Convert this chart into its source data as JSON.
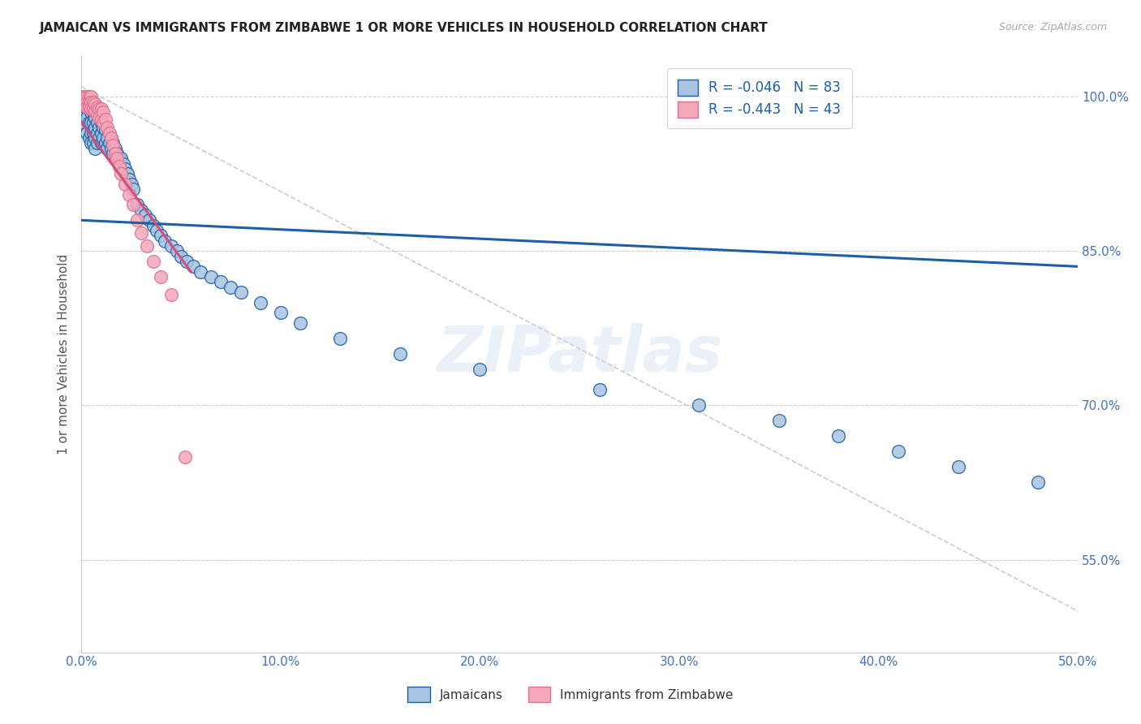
{
  "title": "JAMAICAN VS IMMIGRANTS FROM ZIMBABWE 1 OR MORE VEHICLES IN HOUSEHOLD CORRELATION CHART",
  "source_text": "Source: ZipAtlas.com",
  "ylabel": "1 or more Vehicles in Household",
  "xlim": [
    0.0,
    0.5
  ],
  "ylim": [
    0.46,
    1.04
  ],
  "xtick_vals": [
    0.0,
    0.1,
    0.2,
    0.3,
    0.4,
    0.5
  ],
  "xtick_labels": [
    "0.0%",
    "10.0%",
    "20.0%",
    "30.0%",
    "40.0%",
    "50.0%"
  ],
  "ytick_vals": [
    0.55,
    0.7,
    0.85,
    1.0
  ],
  "ytick_labels": [
    "55.0%",
    "70.0%",
    "85.0%",
    "100.0%"
  ],
  "jamaicans_x": [
    0.001,
    0.002,
    0.002,
    0.003,
    0.003,
    0.003,
    0.004,
    0.004,
    0.004,
    0.004,
    0.005,
    0.005,
    0.005,
    0.005,
    0.005,
    0.006,
    0.006,
    0.006,
    0.006,
    0.007,
    0.007,
    0.007,
    0.007,
    0.008,
    0.008,
    0.008,
    0.009,
    0.009,
    0.01,
    0.01,
    0.01,
    0.011,
    0.011,
    0.012,
    0.012,
    0.013,
    0.013,
    0.014,
    0.015,
    0.015,
    0.016,
    0.016,
    0.017,
    0.018,
    0.019,
    0.02,
    0.021,
    0.022,
    0.023,
    0.024,
    0.025,
    0.026,
    0.028,
    0.03,
    0.032,
    0.034,
    0.036,
    0.038,
    0.04,
    0.042,
    0.045,
    0.048,
    0.05,
    0.053,
    0.056,
    0.06,
    0.065,
    0.07,
    0.075,
    0.08,
    0.09,
    0.1,
    0.11,
    0.13,
    0.16,
    0.2,
    0.26,
    0.31,
    0.35,
    0.38,
    0.41,
    0.44,
    0.48
  ],
  "jamaicans_y": [
    0.975,
    0.985,
    0.99,
    0.99,
    0.98,
    0.965,
    0.995,
    0.99,
    0.975,
    0.96,
    0.995,
    0.985,
    0.975,
    0.965,
    0.955,
    0.985,
    0.975,
    0.965,
    0.955,
    0.98,
    0.97,
    0.96,
    0.95,
    0.975,
    0.965,
    0.955,
    0.97,
    0.96,
    0.975,
    0.965,
    0.955,
    0.97,
    0.96,
    0.968,
    0.955,
    0.96,
    0.95,
    0.955,
    0.96,
    0.95,
    0.955,
    0.945,
    0.95,
    0.945,
    0.94,
    0.94,
    0.935,
    0.93,
    0.925,
    0.92,
    0.915,
    0.91,
    0.895,
    0.89,
    0.885,
    0.88,
    0.875,
    0.87,
    0.865,
    0.86,
    0.855,
    0.85,
    0.845,
    0.84,
    0.835,
    0.83,
    0.825,
    0.82,
    0.815,
    0.81,
    0.8,
    0.79,
    0.78,
    0.765,
    0.75,
    0.735,
    0.715,
    0.7,
    0.685,
    0.67,
    0.655,
    0.64,
    0.625
  ],
  "zimbabwe_x": [
    0.001,
    0.002,
    0.002,
    0.003,
    0.003,
    0.003,
    0.004,
    0.004,
    0.004,
    0.005,
    0.005,
    0.005,
    0.006,
    0.006,
    0.007,
    0.007,
    0.008,
    0.008,
    0.009,
    0.009,
    0.01,
    0.01,
    0.011,
    0.011,
    0.012,
    0.013,
    0.014,
    0.015,
    0.016,
    0.017,
    0.018,
    0.019,
    0.02,
    0.022,
    0.024,
    0.026,
    0.028,
    0.03,
    0.033,
    0.036,
    0.04,
    0.045,
    0.052
  ],
  "zimbabwe_y": [
    1.0,
    1.0,
    0.995,
    1.0,
    0.995,
    0.99,
    1.0,
    0.995,
    0.99,
    1.0,
    0.995,
    0.988,
    0.995,
    0.988,
    0.993,
    0.986,
    0.99,
    0.983,
    0.988,
    0.98,
    0.988,
    0.978,
    0.985,
    0.975,
    0.978,
    0.97,
    0.965,
    0.96,
    0.953,
    0.945,
    0.94,
    0.932,
    0.925,
    0.915,
    0.905,
    0.895,
    0.88,
    0.868,
    0.855,
    0.84,
    0.825,
    0.808,
    0.65
  ],
  "jamaican_color": "#a8c4e0",
  "zimbabwe_color": "#f4a7b9",
  "jamaican_line_color": "#1a5fa8",
  "zimbabwe_line_color": "#d44f7a",
  "trend_line_color": "#c0c0c0",
  "background_color": "#ffffff",
  "grid_color": "#d0d0d0",
  "R_jamaican": -0.046,
  "N_jamaican": 83,
  "R_zimbabwe": -0.443,
  "N_zimbabwe": 43,
  "watermark": "ZIPatlas",
  "title_fontsize": 11,
  "legend_fontsize": 12,
  "axis_label_fontsize": 11,
  "tick_fontsize": 11,
  "jamaican_trend_x0": 0.0,
  "jamaican_trend_y0": 0.88,
  "jamaican_trend_x1": 0.5,
  "jamaican_trend_y1": 0.835,
  "zimbabwe_trend_x0": 0.0,
  "zimbabwe_trend_y0": 0.975,
  "zimbabwe_trend_x1": 0.055,
  "zimbabwe_trend_y1": 0.83
}
